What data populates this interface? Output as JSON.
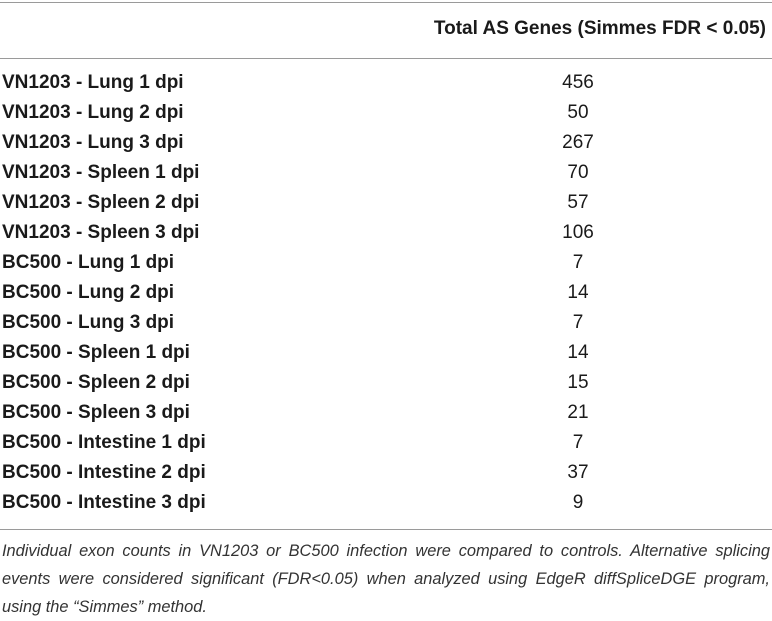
{
  "table": {
    "header": {
      "row_label": "",
      "value_label": "Total AS Genes (Simmes FDR < 0.05)"
    },
    "rows": [
      {
        "label": "VN1203 - Lung 1 dpi",
        "value": "456"
      },
      {
        "label": "VN1203 - Lung 2 dpi",
        "value": "50"
      },
      {
        "label": "VN1203 - Lung 3 dpi",
        "value": "267"
      },
      {
        "label": "VN1203 - Spleen 1 dpi",
        "value": "70"
      },
      {
        "label": "VN1203 - Spleen 2 dpi",
        "value": "57"
      },
      {
        "label": "VN1203 - Spleen 3 dpi",
        "value": "106"
      },
      {
        "label": "BC500 - Lung 1 dpi",
        "value": "7"
      },
      {
        "label": "BC500 - Lung 2 dpi",
        "value": "14"
      },
      {
        "label": "BC500 - Lung 3 dpi",
        "value": "7"
      },
      {
        "label": "BC500 - Spleen 1 dpi",
        "value": "14"
      },
      {
        "label": "BC500 - Spleen 2 dpi",
        "value": "15"
      },
      {
        "label": "BC500 - Spleen 3 dpi",
        "value": "21"
      },
      {
        "label": "BC500 - Intestine 1 dpi",
        "value": "7"
      },
      {
        "label": "BC500 - Intestine 2 dpi",
        "value": "37"
      },
      {
        "label": "BC500 - Intestine 3 dpi",
        "value": "9"
      }
    ],
    "footnote": "Individual exon counts in VN1203 or BC500 infection were compared to controls. Alternative splicing events were considered significant (FDR<0.05) when analyzed using EdgeR diffSpliceDGE program, using the “Simmes” method."
  }
}
